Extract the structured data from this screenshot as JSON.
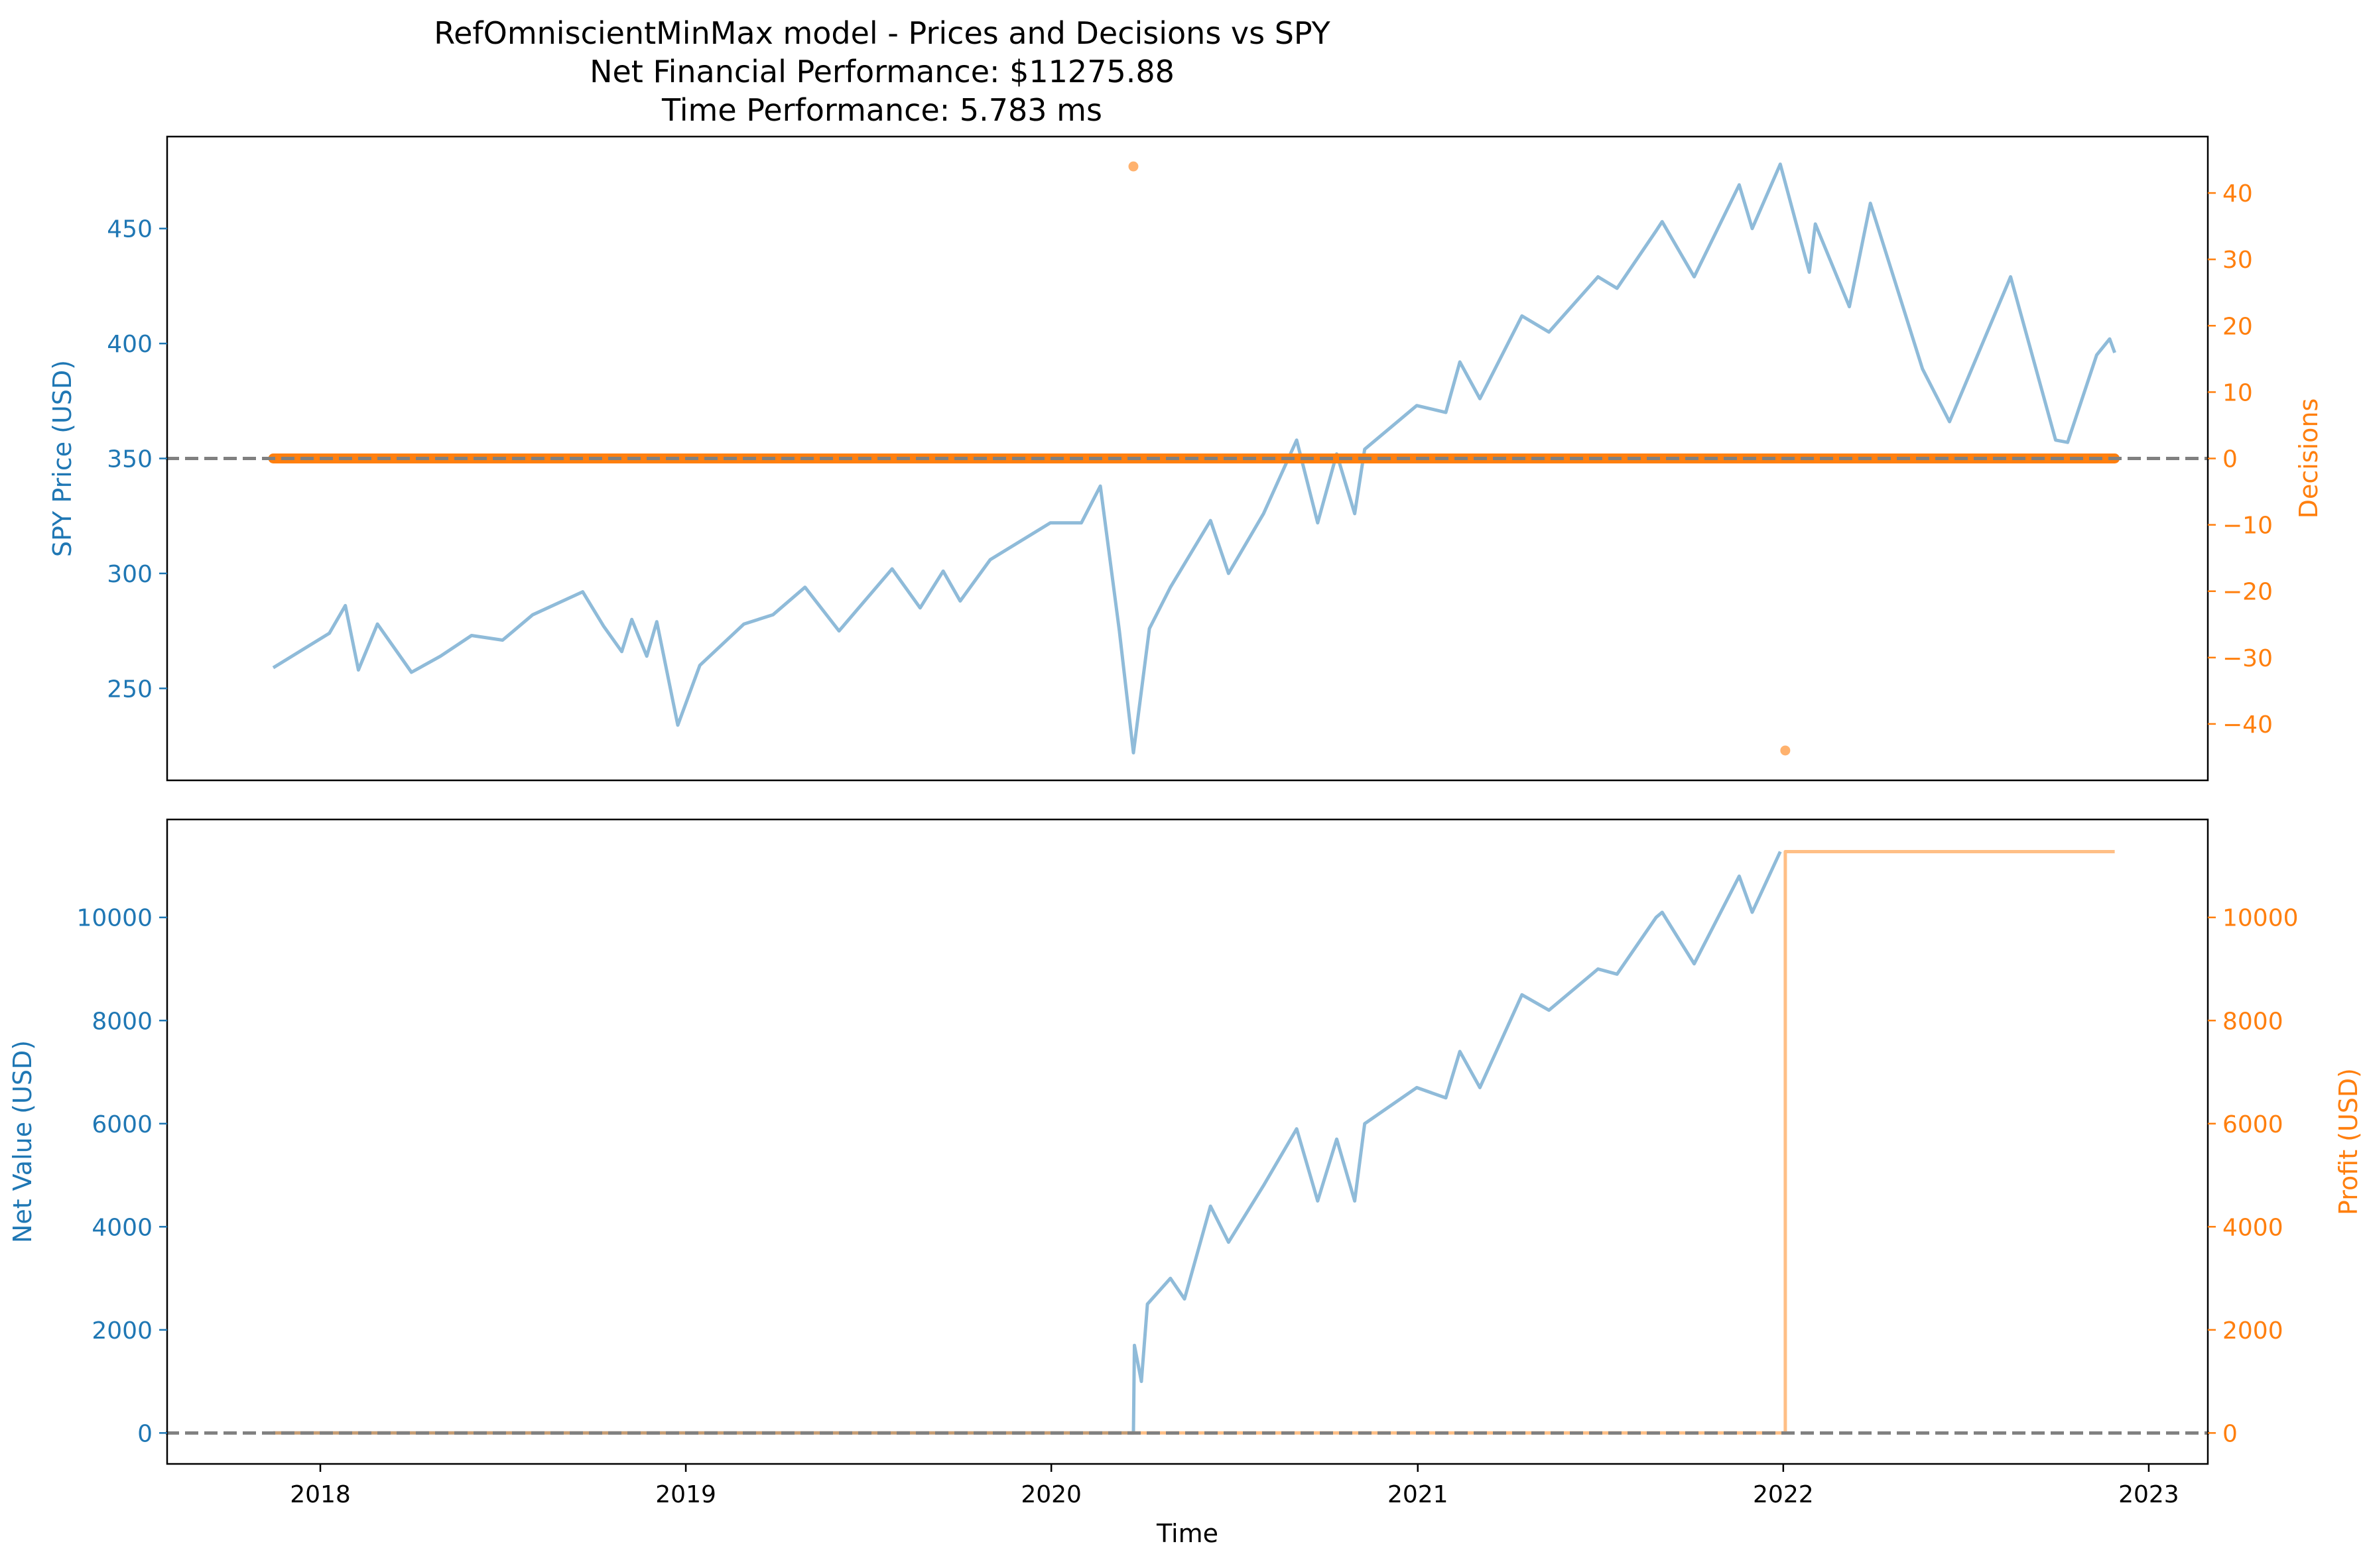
{
  "figure": {
    "title_lines": [
      "RefOmniscientMinMax model - Prices and Decisions vs SPY",
      "Net Financial Performance: $11275.88",
      "Time Performance: 5.783 ms"
    ]
  },
  "colors": {
    "blue": "#1f77b4",
    "orange": "#ff7f0e",
    "zero_line": "#808080",
    "blue_line_rgba": "rgba(31,119,180,0.5)",
    "orange_line_rgba": "rgba(255,127,14,0.5)"
  },
  "chart_data": [
    {
      "type": "line",
      "panel": "top",
      "xlabel": "",
      "ylabel": "SPY Price (USD)",
      "y2label": "Decisions",
      "xlim": [
        "2017-08-01",
        "2023-03-01"
      ],
      "ylim": [
        210,
        490
      ],
      "y2lim": [
        -48.5,
        48.5
      ],
      "yticks": [
        250,
        300,
        350,
        400,
        450
      ],
      "y2ticks": [
        -40,
        -30,
        -20,
        -10,
        0,
        10,
        20,
        30,
        40
      ],
      "y2tick_labels": [
        "−40",
        "−30",
        "−20",
        "−10",
        "0",
        "10",
        "20",
        "30",
        "40"
      ],
      "zero_line_y2": 0,
      "series": [
        {
          "axis": "left",
          "style": "line",
          "color": "blue",
          "points": [
            [
              "2017-11-15",
              259
            ],
            [
              "2017-12-15",
              267
            ],
            [
              "2018-01-10",
              274
            ],
            [
              "2018-01-26",
              286
            ],
            [
              "2018-02-08",
              258
            ],
            [
              "2018-02-27",
              278
            ],
            [
              "2018-04-02",
              257
            ],
            [
              "2018-05-01",
              264
            ],
            [
              "2018-06-01",
              273
            ],
            [
              "2018-07-02",
              271
            ],
            [
              "2018-08-01",
              282
            ],
            [
              "2018-09-20",
              292
            ],
            [
              "2018-10-11",
              277
            ],
            [
              "2018-10-29",
              266
            ],
            [
              "2018-11-08",
              280
            ],
            [
              "2018-11-23",
              264
            ],
            [
              "2018-12-03",
              279
            ],
            [
              "2018-12-24",
              234
            ],
            [
              "2019-01-15",
              260
            ],
            [
              "2019-02-28",
              278
            ],
            [
              "2019-03-29",
              282
            ],
            [
              "2019-04-30",
              294
            ],
            [
              "2019-06-03",
              275
            ],
            [
              "2019-07-26",
              302
            ],
            [
              "2019-08-23",
              285
            ],
            [
              "2019-09-15",
              301
            ],
            [
              "2019-10-02",
              288
            ],
            [
              "2019-11-01",
              306
            ],
            [
              "2019-12-31",
              322
            ],
            [
              "2020-01-31",
              322
            ],
            [
              "2020-02-19",
              338
            ],
            [
              "2020-03-09",
              275
            ],
            [
              "2020-03-23",
              222
            ],
            [
              "2020-04-08",
              276
            ],
            [
              "2020-04-29",
              294
            ],
            [
              "2020-06-08",
              323
            ],
            [
              "2020-06-26",
              300
            ],
            [
              "2020-07-31",
              326
            ],
            [
              "2020-09-02",
              358
            ],
            [
              "2020-09-23",
              322
            ],
            [
              "2020-10-12",
              352
            ],
            [
              "2020-10-30",
              326
            ],
            [
              "2020-11-09",
              354
            ],
            [
              "2020-12-31",
              373
            ],
            [
              "2021-01-29",
              370
            ],
            [
              "2021-02-12",
              392
            ],
            [
              "2021-03-04",
              376
            ],
            [
              "2021-04-15",
              412
            ],
            [
              "2021-05-12",
              405
            ],
            [
              "2021-06-30",
              429
            ],
            [
              "2021-07-19",
              424
            ],
            [
              "2021-08-27",
              449
            ],
            [
              "2021-09-02",
              453
            ],
            [
              "2021-10-04",
              429
            ],
            [
              "2021-11-18",
              469
            ],
            [
              "2021-12-01",
              450
            ],
            [
              "2021-12-29",
              478
            ],
            [
              "2022-01-27",
              431
            ],
            [
              "2022-02-02",
              452
            ],
            [
              "2022-03-08",
              416
            ],
            [
              "2022-03-29",
              461
            ],
            [
              "2022-05-20",
              389
            ],
            [
              "2022-06-16",
              366
            ],
            [
              "2022-08-16",
              429
            ],
            [
              "2022-09-30",
              358
            ],
            [
              "2022-10-12",
              357
            ],
            [
              "2022-11-10",
              395
            ],
            [
              "2022-11-23",
              402
            ],
            [
              "2022-11-28",
              396
            ]
          ]
        },
        {
          "axis": "right",
          "style": "scatter",
          "color": "orange",
          "baseline": {
            "from": "2017-11-15",
            "to": "2022-11-28",
            "value": 0
          },
          "points": [
            [
              "2020-03-23",
              44
            ],
            [
              "2022-01-03",
              -44
            ]
          ]
        }
      ]
    },
    {
      "type": "line",
      "panel": "bottom",
      "xlabel": "Time",
      "ylabel": "Net Value (USD)",
      "y2label": "Profit (USD)",
      "xlim": [
        "2017-08-01",
        "2023-03-01"
      ],
      "ylim": [
        -600,
        11900
      ],
      "y2lim": [
        -600,
        11900
      ],
      "yticks": [
        0,
        2000,
        4000,
        6000,
        8000,
        10000
      ],
      "y2ticks": [
        0,
        2000,
        4000,
        6000,
        8000,
        10000
      ],
      "xticks": [
        "2018-01-01",
        "2019-01-01",
        "2020-01-01",
        "2021-01-01",
        "2022-01-01",
        "2023-01-01"
      ],
      "xtick_labels": [
        "2018",
        "2019",
        "2020",
        "2021",
        "2022",
        "2023"
      ],
      "zero_line_y": 0,
      "series": [
        {
          "axis": "left",
          "style": "line",
          "color": "blue",
          "points": [
            [
              "2017-11-15",
              0
            ],
            [
              "2020-03-23",
              0
            ],
            [
              "2020-03-24",
              1700
            ],
            [
              "2020-03-27",
              1400
            ],
            [
              "2020-03-31",
              1000
            ],
            [
              "2020-04-06",
              2500
            ],
            [
              "2020-04-29",
              3000
            ],
            [
              "2020-05-13",
              2600
            ],
            [
              "2020-06-08",
              4400
            ],
            [
              "2020-06-26",
              3700
            ],
            [
              "2020-07-31",
              4800
            ],
            [
              "2020-09-02",
              5900
            ],
            [
              "2020-09-23",
              4500
            ],
            [
              "2020-10-12",
              5700
            ],
            [
              "2020-10-30",
              4500
            ],
            [
              "2020-11-09",
              6000
            ],
            [
              "2020-12-31",
              6700
            ],
            [
              "2021-01-29",
              6500
            ],
            [
              "2021-02-12",
              7400
            ],
            [
              "2021-03-04",
              6700
            ],
            [
              "2021-04-15",
              8500
            ],
            [
              "2021-05-12",
              8200
            ],
            [
              "2021-06-30",
              9000
            ],
            [
              "2021-07-19",
              8900
            ],
            [
              "2021-08-27",
              10000
            ],
            [
              "2021-09-02",
              10100
            ],
            [
              "2021-10-04",
              9100
            ],
            [
              "2021-11-18",
              10800
            ],
            [
              "2021-12-01",
              10100
            ],
            [
              "2021-12-29",
              11276
            ]
          ]
        },
        {
          "axis": "right",
          "style": "step",
          "color": "orange",
          "points": [
            [
              "2017-11-15",
              0
            ],
            [
              "2022-01-03",
              0
            ],
            [
              "2022-01-03",
              11276
            ],
            [
              "2022-11-28",
              11276
            ]
          ]
        }
      ]
    }
  ]
}
